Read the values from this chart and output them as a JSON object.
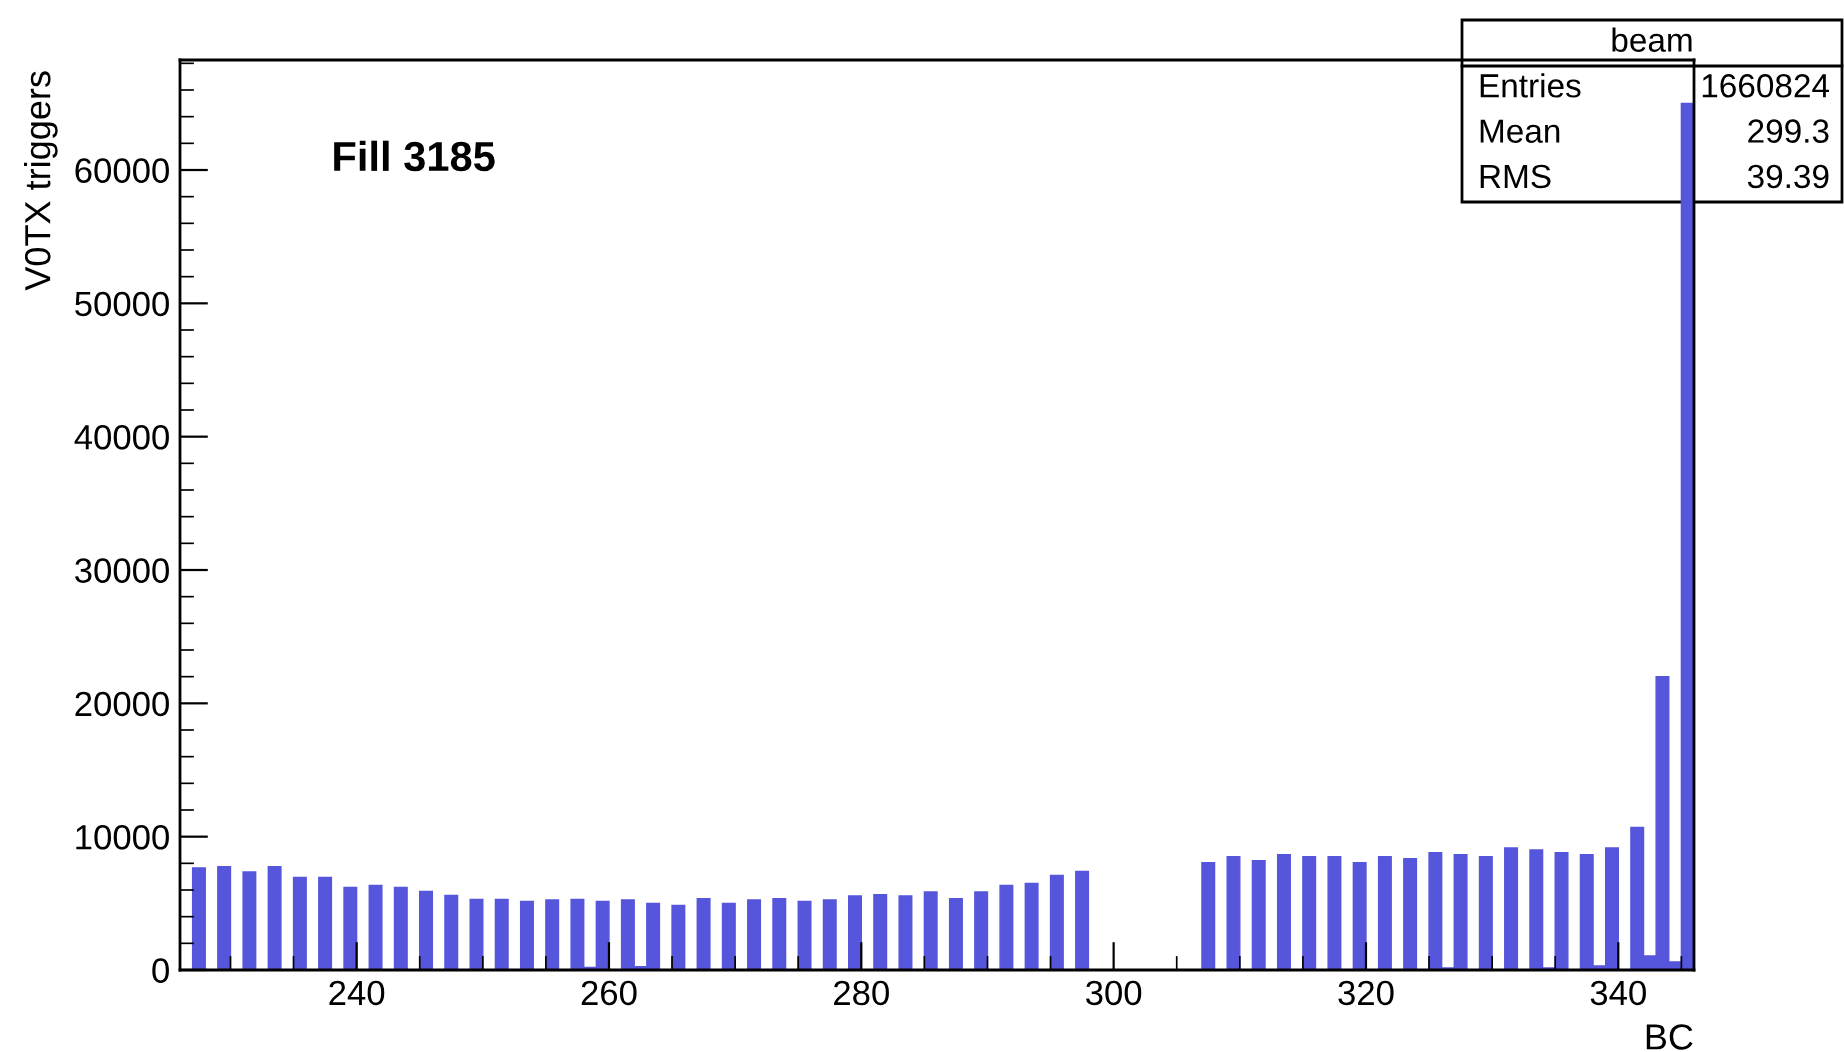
{
  "chart_data": {
    "type": "histogram",
    "xlabel": "BC",
    "ylabel": "V0TX triggers",
    "bins": [
      226,
      227,
      228,
      229,
      230,
      231,
      232,
      233,
      234,
      235,
      236,
      237,
      238,
      239,
      240,
      241,
      242,
      243,
      244,
      245,
      246,
      247,
      248,
      249,
      250,
      251,
      252,
      253,
      254,
      255,
      256,
      257,
      258,
      259,
      260,
      261,
      262,
      263,
      264,
      265,
      266,
      267,
      268,
      269,
      270,
      271,
      272,
      273,
      274,
      275,
      276,
      277,
      278,
      279,
      280,
      281,
      282,
      283,
      284,
      285,
      286,
      287,
      288,
      289,
      290,
      291,
      292,
      293,
      294,
      295,
      296,
      297,
      298,
      299,
      300,
      301,
      302,
      303,
      304,
      305,
      306,
      307,
      308,
      309,
      310,
      311,
      312,
      313,
      314,
      315,
      316,
      317,
      318,
      319,
      320,
      321,
      322,
      323,
      324,
      325,
      326,
      327,
      328,
      329,
      330,
      331,
      332,
      333,
      334,
      335,
      336,
      337,
      338,
      339,
      340,
      341,
      342,
      343,
      344,
      345,
      346
    ],
    "values": [
      0,
      7650,
      0,
      7750,
      0,
      7350,
      0,
      7750,
      0,
      6950,
      0,
      6950,
      0,
      6200,
      0,
      6350,
      0,
      6200,
      0,
      5900,
      0,
      5600,
      0,
      5300,
      0,
      5300,
      0,
      5150,
      0,
      5250,
      0,
      5300,
      200,
      5150,
      0,
      5250,
      250,
      5000,
      0,
      4850,
      0,
      5350,
      0,
      5000,
      0,
      5250,
      0,
      5350,
      0,
      5150,
      0,
      5250,
      0,
      5550,
      0,
      5650,
      0,
      5550,
      0,
      5850,
      0,
      5350,
      0,
      5850,
      0,
      6350,
      0,
      6500,
      0,
      7100,
      0,
      7400,
      0,
      0,
      0,
      0,
      0,
      0,
      0,
      0,
      0,
      8050,
      0,
      8500,
      0,
      8200,
      0,
      8650,
      0,
      8500,
      0,
      8500,
      0,
      8050,
      0,
      8500,
      0,
      8350,
      0,
      8800,
      150,
      8650,
      0,
      8500,
      0,
      9150,
      0,
      9000,
      150,
      8800,
      0,
      8650,
      300,
      9150,
      0,
      10700,
      1050,
      22000,
      600,
      65000
    ],
    "color": "#5656dc",
    "xlim": [
      226,
      346
    ],
    "xticks": [
      240,
      260,
      280,
      300,
      320,
      340
    ],
    "ylim": [
      0,
      68250
    ],
    "yticks": [
      0,
      10000,
      20000,
      30000,
      40000,
      50000,
      60000
    ],
    "grid": false,
    "annotations": [
      "Fill 3185",
      "beam",
      "Entries",
      "1660824",
      "Mean",
      "299.3",
      "RMS",
      "39.39"
    ]
  }
}
